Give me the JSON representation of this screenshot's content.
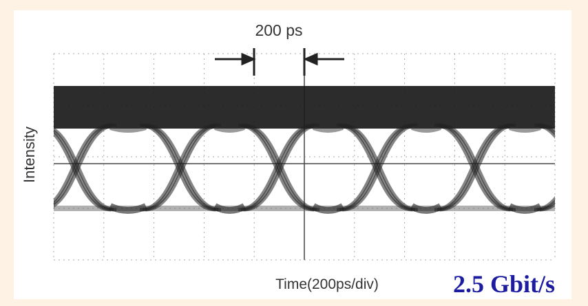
{
  "labels": {
    "marker": "200 ps",
    "y_axis": "Intensity",
    "x_axis": "Time(200ps/div)",
    "bitrate": "2.5 Gbit/s"
  }
}
